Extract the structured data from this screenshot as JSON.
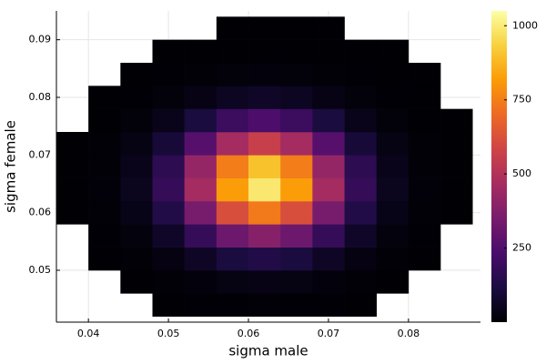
{
  "chart_data": {
    "type": "heatmap",
    "x_label": "sigma male",
    "y_label": "sigma female",
    "x_edges": [
      0.036,
      0.04,
      0.044,
      0.048,
      0.052,
      0.056,
      0.06,
      0.064,
      0.068,
      0.072,
      0.076,
      0.08,
      0.084,
      0.088
    ],
    "y_edges": [
      0.042,
      0.046,
      0.05,
      0.054,
      0.058,
      0.062,
      0.066,
      0.07,
      0.074,
      0.078,
      0.082,
      0.086,
      0.09,
      0.094
    ],
    "z": [
      [
        null,
        null,
        null,
        1,
        3,
        4,
        5,
        4,
        3,
        1,
        null,
        null,
        null
      ],
      [
        null,
        null,
        2,
        6,
        15,
        27,
        32,
        27,
        15,
        6,
        2,
        null,
        null
      ],
      [
        null,
        1,
        6,
        24,
        63,
        112,
        135,
        112,
        63,
        24,
        6,
        1,
        null
      ],
      [
        null,
        3,
        18,
        69,
        181,
        320,
        385,
        320,
        181,
        69,
        18,
        3,
        null
      ],
      [
        1,
        6,
        36,
        133,
        348,
        614,
        740,
        614,
        348,
        133,
        36,
        6,
        1
      ],
      [
        1,
        9,
        48,
        178,
        465,
        822,
        990,
        822,
        465,
        178,
        48,
        9,
        1
      ],
      [
        1,
        8,
        43,
        162,
        423,
        747,
        900,
        747,
        423,
        162,
        43,
        8,
        1
      ],
      [
        1,
        5,
        27,
        101,
        263,
        465,
        560,
        465,
        263,
        101,
        27,
        5,
        1
      ],
      [
        null,
        2,
        12,
        43,
        113,
        199,
        240,
        199,
        113,
        43,
        12,
        2,
        1
      ],
      [
        null,
        1,
        3,
        12,
        32,
        57,
        69,
        57,
        32,
        12,
        3,
        1,
        null
      ],
      [
        null,
        null,
        1,
        3,
        7,
        12,
        14,
        12,
        7,
        3,
        1,
        1,
        null
      ],
      [
        null,
        null,
        null,
        1,
        1,
        2,
        2,
        2,
        1,
        1,
        1,
        null,
        null
      ],
      [
        null,
        null,
        null,
        null,
        null,
        1,
        1,
        1,
        1,
        null,
        null,
        null,
        null
      ]
    ],
    "xlim": [
      0.036,
      0.089
    ],
    "xticks": [
      0.04,
      0.05,
      0.06,
      0.07,
      0.08
    ],
    "ylim": [
      0.041,
      0.095
    ],
    "yticks": [
      0.05,
      0.06,
      0.07,
      0.08,
      0.09
    ],
    "clim": [
      0,
      1050
    ],
    "cticks": [
      250,
      500,
      750,
      1000
    ],
    "colormap": [
      "#000004",
      "#1b0c41",
      "#4a0c6b",
      "#781c6d",
      "#a52c60",
      "#cf4446",
      "#ed6925",
      "#fb9b06",
      "#f7d13d",
      "#fcffa4"
    ],
    "grid": true
  }
}
